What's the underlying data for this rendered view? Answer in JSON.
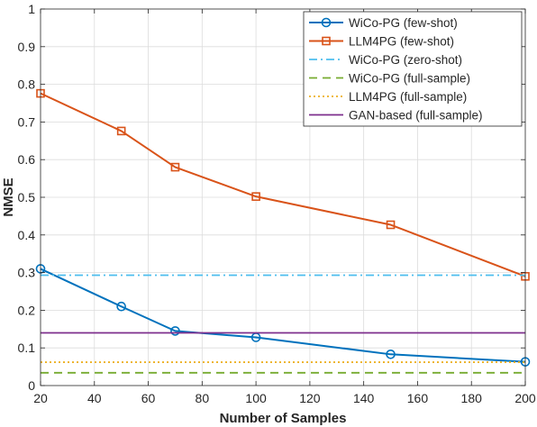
{
  "chart_data": {
    "type": "line",
    "xlabel": "Number of Samples",
    "ylabel": "NMSE",
    "xlim": [
      20,
      200
    ],
    "ylim": [
      0,
      1
    ],
    "xticks": [
      20,
      40,
      60,
      80,
      100,
      120,
      140,
      160,
      180,
      200
    ],
    "yticks": [
      0,
      0.1,
      0.2,
      0.3,
      0.4,
      0.5,
      0.6,
      0.7,
      0.8,
      0.9,
      1
    ],
    "ytick_labels": [
      "0",
      "0.1",
      "0.2",
      "0.3",
      "0.4",
      "0.5",
      "0.6",
      "0.7",
      "0.8",
      "0.9",
      "1"
    ],
    "grid": true,
    "legend_position": "top-right",
    "series": [
      {
        "name": "WiCo-PG (few-shot)",
        "color": "#0072BD",
        "style": "solid",
        "marker": "circle",
        "x": [
          20,
          50,
          70,
          100,
          150,
          200
        ],
        "y": [
          0.31,
          0.21,
          0.145,
          0.128,
          0.083,
          0.063
        ]
      },
      {
        "name": "LLM4PG (few-shot)",
        "color": "#D95319",
        "style": "solid",
        "marker": "square",
        "x": [
          20,
          50,
          70,
          100,
          150,
          200
        ],
        "y": [
          0.776,
          0.676,
          0.58,
          0.502,
          0.427,
          0.29
        ]
      },
      {
        "name": "WiCo-PG (zero-shot)",
        "color": "#4DBEEE",
        "style": "dashdot",
        "marker": "none",
        "x": [
          20,
          200
        ],
        "y": [
          0.293,
          0.293
        ]
      },
      {
        "name": "WiCo-PG (full-sample)",
        "color": "#77AC30",
        "style": "dashed",
        "marker": "none",
        "x": [
          20,
          200
        ],
        "y": [
          0.034,
          0.034
        ]
      },
      {
        "name": "LLM4PG (full-sample)",
        "color": "#EDB120",
        "style": "dotted",
        "marker": "none",
        "x": [
          20,
          200
        ],
        "y": [
          0.062,
          0.062
        ]
      },
      {
        "name": "GAN-based (full-sample)",
        "color": "#7E2F8E",
        "style": "solid",
        "marker": "none",
        "x": [
          20,
          200
        ],
        "y": [
          0.14,
          0.14
        ]
      }
    ]
  }
}
